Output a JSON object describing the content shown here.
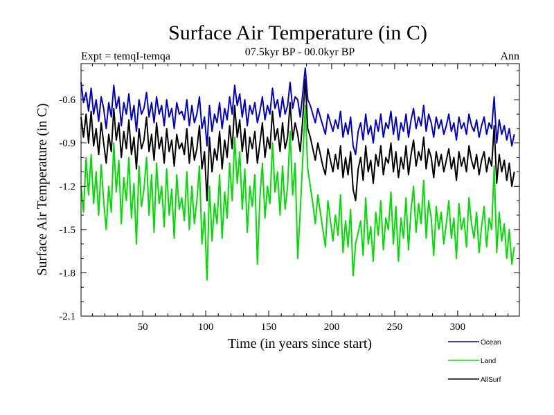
{
  "chart_data": {
    "type": "line",
    "title": "Surface Air Temperature (in C)",
    "subtitle": "07.5kyr BP - 00.0kyr BP",
    "left_label": "Expt = temqI-temqa",
    "right_label": "Ann",
    "xlabel": "Time (in years since start)",
    "ylabel": "Surface Air Temperature (in C)",
    "xlim": [
      1,
      349
    ],
    "ylim": [
      -2.1,
      -0.35
    ],
    "x_ticks": [
      50,
      100,
      150,
      200,
      250,
      300
    ],
    "x_tick_labels": [
      "50",
      "100",
      "150",
      "200",
      "250",
      "300"
    ],
    "y_ticks": [
      -0.6,
      -0.9,
      -1.2,
      -1.5,
      -1.8,
      -2.1
    ],
    "y_tick_labels": [
      "-0.6",
      "-0.9",
      "-1.2",
      "-1.5",
      "-1.8",
      "-2.1"
    ],
    "legend_position": "bottom-right",
    "x_start": 1,
    "x_step": 2,
    "series": [
      {
        "name": "Ocean",
        "color": "#0000cc",
        "values": [
          -0.48,
          -0.62,
          -0.55,
          -0.68,
          -0.52,
          -0.7,
          -0.6,
          -0.75,
          -0.58,
          -0.66,
          -0.8,
          -0.62,
          -0.72,
          -0.5,
          -0.66,
          -0.58,
          -0.78,
          -0.62,
          -0.7,
          -0.56,
          -0.74,
          -0.64,
          -0.82,
          -0.6,
          -0.7,
          -0.66,
          -0.55,
          -0.72,
          -0.62,
          -0.76,
          -0.58,
          -0.7,
          -0.64,
          -0.78,
          -0.6,
          -0.72,
          -0.66,
          -0.8,
          -0.62,
          -0.7,
          -0.68,
          -0.74,
          -0.6,
          -0.78,
          -0.64,
          -0.76,
          -0.7,
          -0.58,
          -0.8,
          -0.72,
          -0.92,
          -0.64,
          -0.82,
          -0.7,
          -0.76,
          -0.62,
          -0.8,
          -0.66,
          -0.74,
          -0.58,
          -0.7,
          -0.5,
          -0.64,
          -0.56,
          -0.72,
          -0.6,
          -0.78,
          -0.64,
          -0.7,
          -0.62,
          -0.76,
          -0.68,
          -0.58,
          -0.74,
          -0.64,
          -0.7,
          -0.52,
          -0.66,
          -0.6,
          -0.72,
          -0.58,
          -0.7,
          -0.64,
          -0.48,
          -0.66,
          -0.58,
          -0.6,
          -0.72,
          -0.56,
          -0.38,
          -0.6,
          -0.64,
          -0.7,
          -0.76,
          -0.66,
          -0.72,
          -0.78,
          -0.84,
          -0.7,
          -0.76,
          -0.82,
          -0.74,
          -0.8,
          -0.68,
          -0.86,
          -0.76,
          -0.84,
          -0.72,
          -0.92,
          -0.98,
          -0.82,
          -0.76,
          -0.88,
          -0.7,
          -0.84,
          -0.78,
          -0.9,
          -0.74,
          -0.82,
          -0.7,
          -0.86,
          -0.76,
          -0.8,
          -0.68,
          -0.84,
          -0.72,
          -0.88,
          -0.76,
          -0.82,
          -0.7,
          -0.86,
          -0.74,
          -0.66,
          -0.8,
          -0.72,
          -0.78,
          -0.64,
          -0.82,
          -0.7,
          -0.76,
          -0.86,
          -0.72,
          -0.8,
          -0.74,
          -0.84,
          -0.78,
          -0.7,
          -0.82,
          -0.76,
          -0.88,
          -0.72,
          -0.8,
          -0.76,
          -0.84,
          -0.7,
          -0.78,
          -0.82,
          -0.74,
          -0.86,
          -0.78,
          -0.72,
          -0.84,
          -0.76,
          -0.8,
          -0.58,
          -0.9,
          -0.74,
          -0.84,
          -0.78,
          -0.88,
          -0.8,
          -0.92,
          -0.84
        ]
      },
      {
        "name": "Land",
        "color": "#00dd00",
        "values": [
          -1.2,
          -1.38,
          -1.0,
          -1.26,
          -0.98,
          -1.32,
          -1.1,
          -1.4,
          -1.05,
          -1.3,
          -1.5,
          -1.2,
          -1.38,
          -0.9,
          -1.24,
          -1.02,
          -1.46,
          -1.14,
          -1.3,
          -1.0,
          -1.42,
          -1.18,
          -1.6,
          -1.06,
          -1.34,
          -1.22,
          -1.0,
          -1.4,
          -1.12,
          -1.52,
          -1.04,
          -1.32,
          -1.2,
          -1.48,
          -1.08,
          -1.4,
          -1.22,
          -1.56,
          -1.12,
          -1.36,
          -1.28,
          -1.44,
          -1.1,
          -1.5,
          -1.2,
          -1.46,
          -1.3,
          -1.06,
          -1.6,
          -1.38,
          -1.85,
          -1.2,
          -1.58,
          -1.32,
          -1.46,
          -1.12,
          -1.56,
          -1.24,
          -1.42,
          -1.04,
          -1.3,
          -0.86,
          -1.18,
          -0.96,
          -1.36,
          -1.08,
          -1.52,
          -1.2,
          -1.34,
          -1.12,
          -1.74,
          -1.28,
          -1.04,
          -1.42,
          -1.2,
          -1.32,
          -0.9,
          -1.24,
          -1.1,
          -1.4,
          -1.06,
          -1.36,
          -1.2,
          -0.82,
          -1.26,
          -1.04,
          -1.7,
          -1.38,
          -1.02,
          -0.64,
          -1.08,
          -1.2,
          -1.32,
          -1.46,
          -1.26,
          -1.38,
          -1.5,
          -1.62,
          -1.3,
          -1.44,
          -1.58,
          -1.4,
          -1.54,
          -1.26,
          -1.66,
          -1.44,
          -1.62,
          -1.36,
          -1.82,
          -1.6,
          -1.52,
          -1.44,
          -1.68,
          -1.28,
          -1.6,
          -1.48,
          -1.72,
          -1.38,
          -1.54,
          -1.3,
          -1.64,
          -1.42,
          -1.5,
          -1.24,
          -1.6,
          -1.34,
          -1.72,
          -1.42,
          -1.56,
          -1.28,
          -1.64,
          -1.36,
          -1.2,
          -1.52,
          -1.32,
          -1.46,
          -1.16,
          -1.56,
          -1.3,
          -1.42,
          -1.68,
          -1.34,
          -1.5,
          -1.38,
          -1.6,
          -1.46,
          -1.3,
          -1.56,
          -1.42,
          -1.7,
          -1.32,
          -1.5,
          -1.42,
          -1.62,
          -1.28,
          -1.46,
          -1.56,
          -1.38,
          -1.66,
          -1.48,
          -1.34,
          -1.62,
          -1.42,
          -1.5,
          -1.06,
          -1.66,
          -1.38,
          -1.58,
          -1.46,
          -1.7,
          -1.5,
          -1.74,
          -1.62
        ]
      },
      {
        "name": "AllSurf",
        "color": "#000000",
        "values": [
          -0.72,
          -0.86,
          -0.7,
          -0.9,
          -0.68,
          -0.92,
          -0.8,
          -0.98,
          -0.76,
          -0.9,
          -1.04,
          -0.84,
          -0.96,
          -0.66,
          -0.88,
          -0.76,
          -1.0,
          -0.82,
          -0.94,
          -0.74,
          -0.98,
          -0.86,
          -1.08,
          -0.8,
          -0.94,
          -0.88,
          -0.72,
          -0.96,
          -0.84,
          -1.02,
          -0.76,
          -0.94,
          -0.86,
          -1.04,
          -0.8,
          -0.96,
          -0.88,
          -1.06,
          -0.84,
          -0.94,
          -0.9,
          -0.98,
          -0.8,
          -1.04,
          -0.86,
          -1.02,
          -0.94,
          -0.78,
          -1.08,
          -0.96,
          -1.3,
          -0.86,
          -1.1,
          -0.94,
          -1.02,
          -0.82,
          -1.08,
          -0.88,
          -1.0,
          -0.78,
          -0.94,
          -0.64,
          -0.86,
          -0.74,
          -0.96,
          -0.8,
          -1.04,
          -0.86,
          -0.94,
          -0.82,
          -1.04,
          -0.9,
          -0.76,
          -1.0,
          -0.86,
          -0.94,
          -0.68,
          -0.88,
          -0.8,
          -0.96,
          -0.76,
          -0.94,
          -0.86,
          -0.62,
          -0.88,
          -0.76,
          -0.84,
          -0.96,
          -0.74,
          -0.46,
          -0.8,
          -0.86,
          -0.94,
          -1.02,
          -0.9,
          -0.98,
          -1.06,
          -1.12,
          -0.94,
          -1.02,
          -1.1,
          -0.98,
          -1.08,
          -0.92,
          -1.14,
          -1.0,
          -1.12,
          -0.96,
          -1.22,
          -1.3,
          -1.08,
          -1.0,
          -1.16,
          -0.92,
          -1.1,
          -1.02,
          -1.18,
          -0.98,
          -1.06,
          -0.92,
          -1.12,
          -1.0,
          -1.04,
          -0.9,
          -1.1,
          -0.96,
          -1.14,
          -1.0,
          -1.08,
          -0.92,
          -1.12,
          -0.98,
          -0.88,
          -1.06,
          -0.96,
          -1.02,
          -0.86,
          -1.08,
          -0.94,
          -1.0,
          -1.14,
          -0.96,
          -1.06,
          -0.98,
          -1.1,
          -1.02,
          -0.94,
          -1.08,
          -1.0,
          -1.16,
          -0.96,
          -1.06,
          -1.0,
          -1.1,
          -0.92,
          -1.02,
          -1.08,
          -0.98,
          -1.12,
          -1.02,
          -0.96,
          -1.1,
          -1.0,
          -1.06,
          -0.78,
          -1.18,
          -0.98,
          -1.1,
          -1.02,
          -1.16,
          -1.04,
          -1.2,
          -1.1
        ]
      }
    ]
  }
}
